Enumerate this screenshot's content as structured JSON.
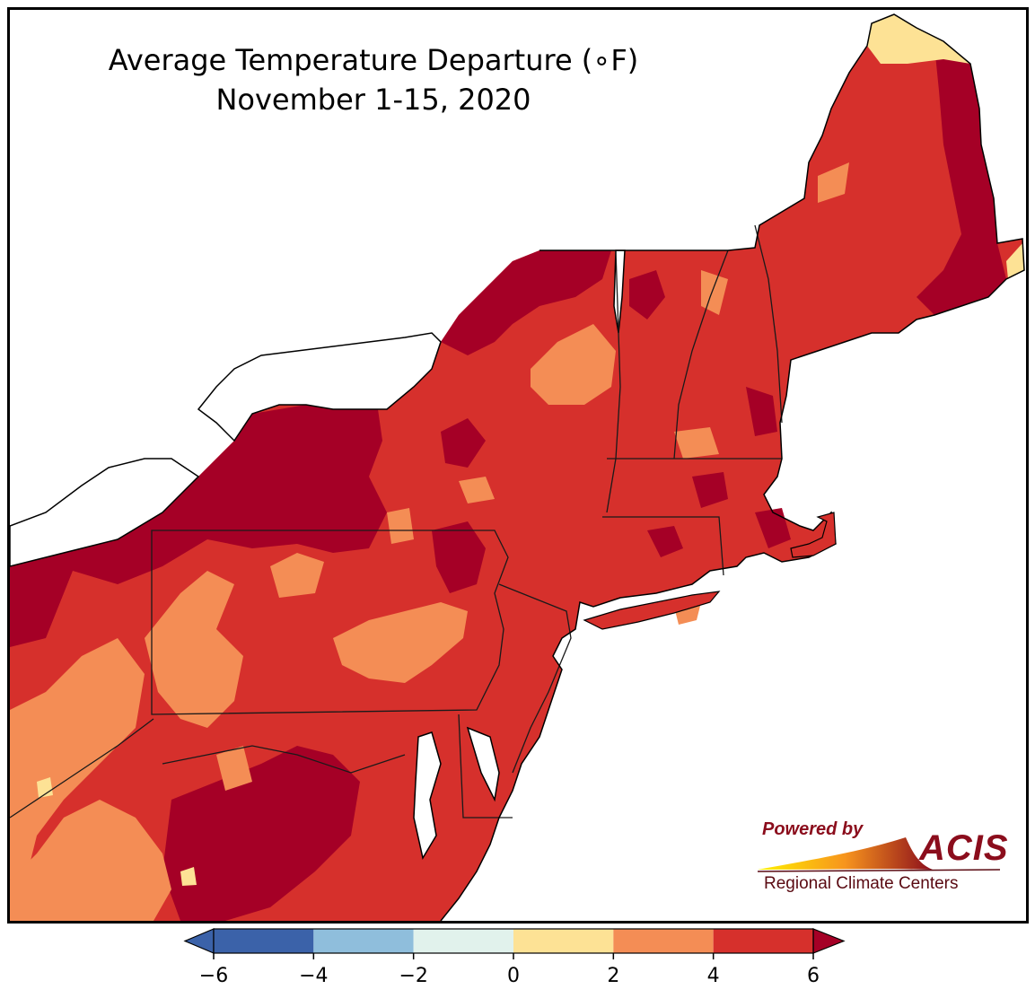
{
  "title": {
    "line1": "Average Temperature Departure (∘F)",
    "line2": "November 1-15, 2020"
  },
  "logo": {
    "powered_by": "Powered by",
    "name": "ACIS",
    "subtitle": "Regional Climate Centers"
  },
  "colorbar": {
    "ticks": [
      "−6",
      "−4",
      "−2",
      "0",
      "2",
      "4",
      "6"
    ],
    "bins": [
      {
        "range": "-6 to -4",
        "color": "#3b62a9"
      },
      {
        "range": "-4 to -2",
        "color": "#8fbedc"
      },
      {
        "range": "-2 to 0",
        "color": "#e1f2ec"
      },
      {
        "range": "0 to 2",
        "color": "#fde295"
      },
      {
        "range": "2 to 4",
        "color": "#f48d55"
      },
      {
        "range": "4 to 6",
        "color": "#d6302c"
      }
    ],
    "under_color": "#3b62a9",
    "over_color": "#a50026"
  },
  "map_colors": {
    "departure_0_2": "#fde295",
    "departure_2_4": "#f48d55",
    "departure_4_6": "#d6302c",
    "departure_over_6": "#a50026",
    "water": "#ffffff"
  }
}
